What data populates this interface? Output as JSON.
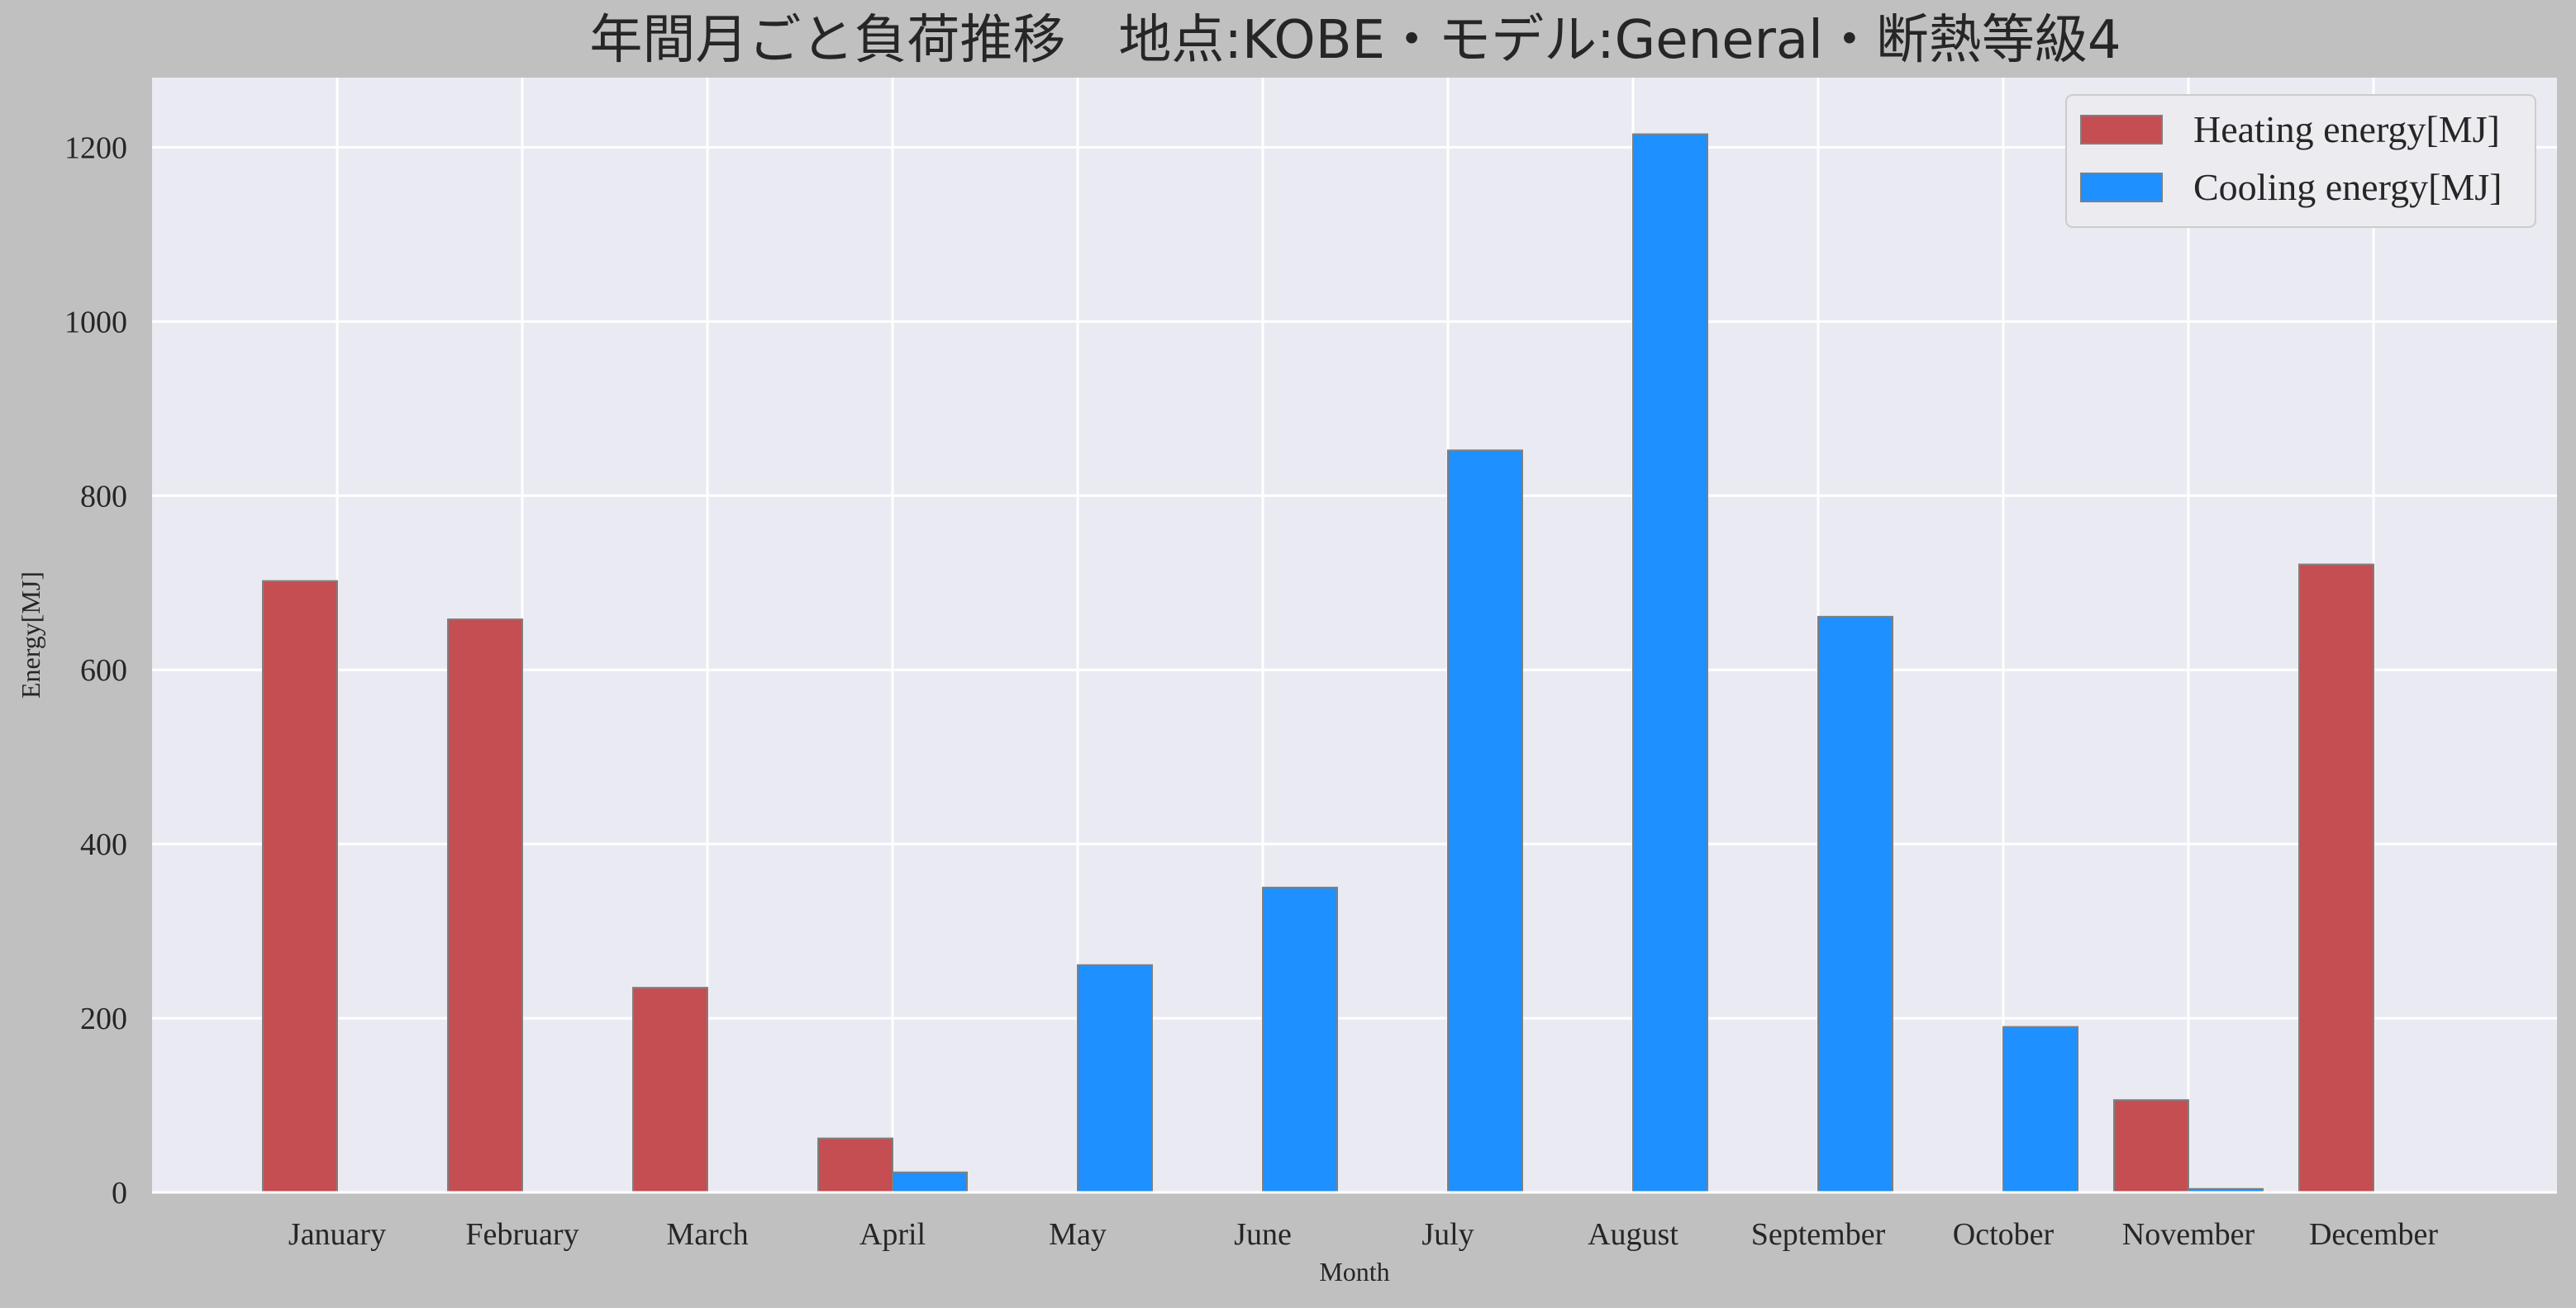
{
  "chart_data": {
    "type": "bar",
    "title": "年間月ごと負荷推移　地点:KOBE・モデル:General・断熱等級4",
    "xlabel": "Month",
    "ylabel": "Energy[MJ]",
    "categories": [
      "January",
      "February",
      "March",
      "April",
      "May",
      "June",
      "July",
      "August",
      "September",
      "October",
      "November",
      "December"
    ],
    "series": [
      {
        "name": "Heating energy[MJ]",
        "color": "#c44e52",
        "values": [
          702,
          658,
          235,
          62,
          0,
          0,
          0,
          0,
          0,
          0,
          106,
          721
        ]
      },
      {
        "name": "Cooling energy[MJ]",
        "color": "#1e90ff",
        "values": [
          0,
          0,
          0,
          23,
          261,
          350,
          852,
          1215,
          661,
          190,
          4,
          0
        ]
      }
    ],
    "ylim": [
      0,
      1280
    ],
    "yticks": [
      0,
      200,
      400,
      600,
      800,
      1000,
      1200
    ],
    "grid": true,
    "legend_position": "top-right"
  }
}
